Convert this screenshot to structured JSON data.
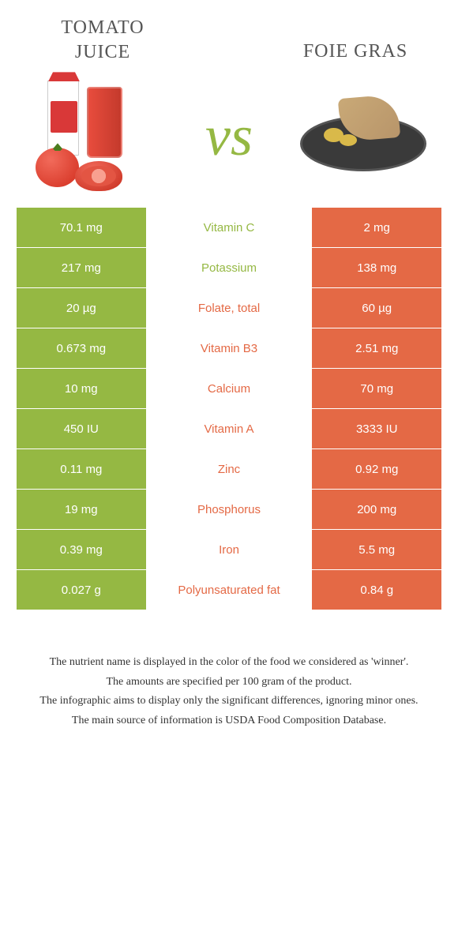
{
  "colors": {
    "left": "#95b843",
    "right": "#e46945",
    "leftText": "#95b843",
    "rightText": "#e46945"
  },
  "foodLeft": {
    "titleLine1": "Tomato",
    "titleLine2": "juice"
  },
  "foodRight": {
    "title": "Foie gras"
  },
  "vs": "vs",
  "rows": [
    {
      "left": "70.1 mg",
      "label": "Vitamin C",
      "right": "2 mg",
      "winner": "left"
    },
    {
      "left": "217 mg",
      "label": "Potassium",
      "right": "138 mg",
      "winner": "left"
    },
    {
      "left": "20 µg",
      "label": "Folate, total",
      "right": "60 µg",
      "winner": "right"
    },
    {
      "left": "0.673 mg",
      "label": "Vitamin B3",
      "right": "2.51 mg",
      "winner": "right"
    },
    {
      "left": "10 mg",
      "label": "Calcium",
      "right": "70 mg",
      "winner": "right"
    },
    {
      "left": "450 IU",
      "label": "Vitamin A",
      "right": "3333 IU",
      "winner": "right"
    },
    {
      "left": "0.11 mg",
      "label": "Zinc",
      "right": "0.92 mg",
      "winner": "right"
    },
    {
      "left": "19 mg",
      "label": "Phosphorus",
      "right": "200 mg",
      "winner": "right"
    },
    {
      "left": "0.39 mg",
      "label": "Iron",
      "right": "5.5 mg",
      "winner": "right"
    },
    {
      "left": "0.027 g",
      "label": "Polyunsaturated fat",
      "right": "0.84 g",
      "winner": "right"
    }
  ],
  "footnotes": [
    "The nutrient name is displayed in the color of the food we considered as 'winner'.",
    "The amounts are specified per 100 gram of the product.",
    "The infographic aims to display only the significant differences, ignoring minor ones.",
    "The main source of information is USDA Food Composition Database."
  ]
}
